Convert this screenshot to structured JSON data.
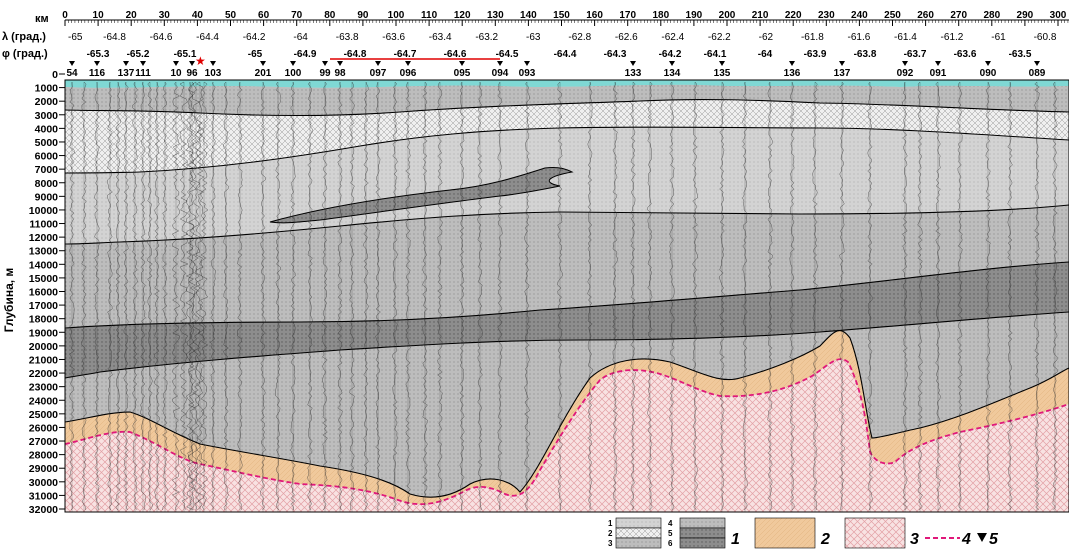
{
  "header": {
    "km_label": "км",
    "lambda_label": "λ (град.)",
    "phi_label": "φ (град.)",
    "km_ticks": [
      "0",
      "10",
      "20",
      "30",
      "40",
      "50",
      "60",
      "70",
      "80",
      "90",
      "100",
      "110",
      "120",
      "130",
      "140",
      "150",
      "160",
      "170",
      "180",
      "190",
      "200",
      "210",
      "220",
      "230",
      "240",
      "250",
      "260",
      "270",
      "280",
      "290",
      "300"
    ],
    "lambda_values": [
      "-65",
      "-64.8",
      "-64.6",
      "-64.4",
      "-64.2",
      "-64",
      "-63.8",
      "-63.6",
      "-63.4",
      "-63.2",
      "-63",
      "-62.8",
      "-62.6",
      "-62.4",
      "-62.2",
      "-62",
      "-61.8",
      "-61.6",
      "-61.4",
      "-61.2",
      "-61",
      "-60.8"
    ],
    "phi_values": [
      "-65.3",
      "-65.2",
      "-65.1",
      "-65",
      "-64.9",
      "-64.8",
      "-64.7",
      "-64.6",
      "-64.5",
      "-64.4",
      "-64.3",
      "-64.2",
      "-64.1",
      "-64",
      "-63.9",
      "-63.8",
      "-63.7",
      "-63.6",
      "-63.5"
    ],
    "stations": [
      "54",
      "116",
      "137",
      "111",
      "10",
      "96",
      "103",
      "201",
      "100",
      "99",
      "98",
      "097",
      "096",
      "095",
      "094",
      "093",
      "133",
      "134",
      "135",
      "136",
      "137",
      "092",
      "091",
      "090",
      "089"
    ]
  },
  "axis": {
    "ylabel": "Глубина, м",
    "depth_ticks": [
      "0",
      "1000",
      "2000",
      "3000",
      "4000",
      "5000",
      "6000",
      "7000",
      "8000",
      "9000",
      "10000",
      "11000",
      "12000",
      "13000",
      "14000",
      "15000",
      "16000",
      "17000",
      "18000",
      "19000",
      "20000",
      "21000",
      "22000",
      "23000",
      "24000",
      "25000",
      "26000",
      "27000",
      "28000",
      "29000",
      "30000",
      "31000",
      "32000"
    ]
  },
  "legend": {
    "pattern_labels": [
      "1",
      "2",
      "3",
      "4",
      "5",
      "6"
    ],
    "items": [
      "1",
      "2",
      "3",
      "4",
      "5"
    ]
  },
  "colors": {
    "sea": "#7fd8d4",
    "sediment": "#f2cfa6",
    "basement": "#f6d9d9",
    "basement_hatch": "#e7a7ab",
    "boundary": "#e0187a",
    "layer_light": "#d9d9d9",
    "layer_mid": "#b9b9b9",
    "layer_dark": "#8f8f8f",
    "layer_cross": "#eeeeee"
  }
}
